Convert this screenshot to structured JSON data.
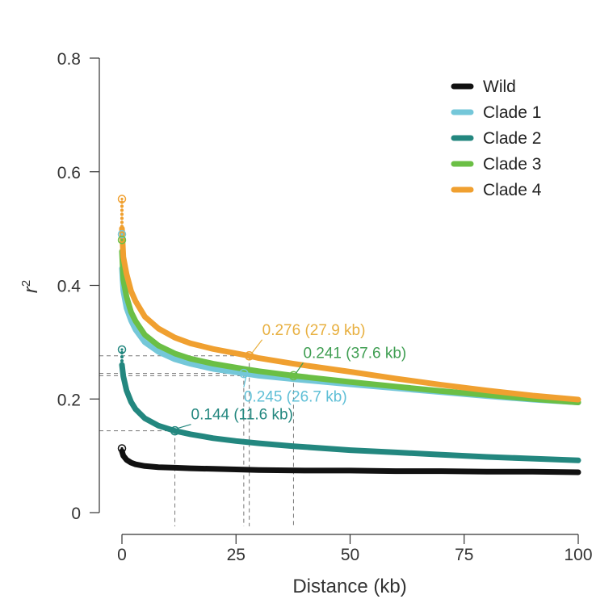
{
  "chart_data": {
    "type": "line",
    "title": "",
    "xlabel": "Distance (kb)",
    "ylabel": "r",
    "ylabel_sup": "2",
    "xlim": [
      0,
      100
    ],
    "ylim": [
      0,
      0.8
    ],
    "xticks": [
      0,
      25,
      50,
      75,
      100
    ],
    "xtick_labels": [
      "0",
      "25",
      "50",
      "75",
      "100"
    ],
    "yticks": [
      0,
      0.2,
      0.4,
      0.6,
      0.8
    ],
    "ytick_labels": [
      "0",
      "0.2",
      "0.4",
      "0.6",
      "0.8"
    ],
    "grid": false,
    "legend_position": "top-right",
    "series": [
      {
        "name": "Wild",
        "color": "#111111",
        "start_value": 0.113,
        "x": [
          0,
          0.3,
          1,
          2,
          3,
          5,
          8,
          11.6,
          15,
          20,
          25,
          30,
          40,
          50,
          60,
          70,
          80,
          90,
          100
        ],
        "values": [
          0.108,
          0.1,
          0.093,
          0.088,
          0.085,
          0.082,
          0.08,
          0.079,
          0.078,
          0.077,
          0.076,
          0.075,
          0.074,
          0.074,
          0.073,
          0.073,
          0.072,
          0.072,
          0.071
        ]
      },
      {
        "name": "Clade 1",
        "color": "#74c7d9",
        "start_value": 0.49,
        "x": [
          0,
          0.3,
          1,
          2,
          3,
          5,
          8,
          11.6,
          15,
          20,
          26.7,
          30,
          37.6,
          50,
          60,
          70,
          80,
          90,
          100
        ],
        "values": [
          0.43,
          0.39,
          0.36,
          0.338,
          0.322,
          0.3,
          0.283,
          0.27,
          0.262,
          0.253,
          0.245,
          0.241,
          0.235,
          0.226,
          0.219,
          0.212,
          0.205,
          0.199,
          0.194
        ]
      },
      {
        "name": "Clade 2",
        "color": "#23877f",
        "start_value": 0.287,
        "x": [
          0,
          0.3,
          1,
          2,
          3,
          5,
          8,
          11.6,
          15,
          20,
          25,
          30,
          37.6,
          50,
          60,
          70,
          80,
          90,
          100
        ],
        "values": [
          0.26,
          0.24,
          0.215,
          0.195,
          0.182,
          0.166,
          0.153,
          0.144,
          0.138,
          0.131,
          0.126,
          0.122,
          0.117,
          0.11,
          0.106,
          0.102,
          0.098,
          0.095,
          0.092
        ]
      },
      {
        "name": "Clade 3",
        "color": "#6bbf45",
        "start_value": 0.48,
        "x": [
          0,
          0.3,
          1,
          2,
          3,
          5,
          8,
          11.6,
          15,
          20,
          26.7,
          30,
          37.6,
          50,
          60,
          70,
          80,
          90,
          100
        ],
        "values": [
          0.46,
          0.41,
          0.38,
          0.353,
          0.337,
          0.313,
          0.294,
          0.28,
          0.271,
          0.262,
          0.253,
          0.249,
          0.241,
          0.23,
          0.222,
          0.214,
          0.207,
          0.2,
          0.194
        ]
      },
      {
        "name": "Clade 4",
        "color": "#f0a030",
        "start_value": 0.552,
        "x": [
          0,
          0.3,
          1,
          2,
          3,
          5,
          8,
          11.6,
          15,
          20,
          27.9,
          30,
          37.6,
          50,
          60,
          70,
          80,
          90,
          100
        ],
        "values": [
          0.5,
          0.45,
          0.42,
          0.39,
          0.372,
          0.345,
          0.324,
          0.308,
          0.298,
          0.288,
          0.276,
          0.272,
          0.262,
          0.248,
          0.236,
          0.225,
          0.215,
          0.206,
          0.199
        ]
      }
    ],
    "annotations": [
      {
        "series": "Clade 4",
        "text": "0.276 (27.9 kb)",
        "x": 27.9,
        "y": 0.276,
        "color": "#e8b040"
      },
      {
        "series": "Clade 3",
        "text": "0.241 (37.6 kb)",
        "x": 37.6,
        "y": 0.241,
        "color": "#3f9e52"
      },
      {
        "series": "Clade 1",
        "text": "0.245 (26.7 kb)",
        "x": 26.7,
        "y": 0.245,
        "color": "#5fbfd6"
      },
      {
        "series": "Clade 2",
        "text": "0.144 (11.6 kb)",
        "x": 11.6,
        "y": 0.144,
        "color": "#23877f"
      }
    ]
  }
}
